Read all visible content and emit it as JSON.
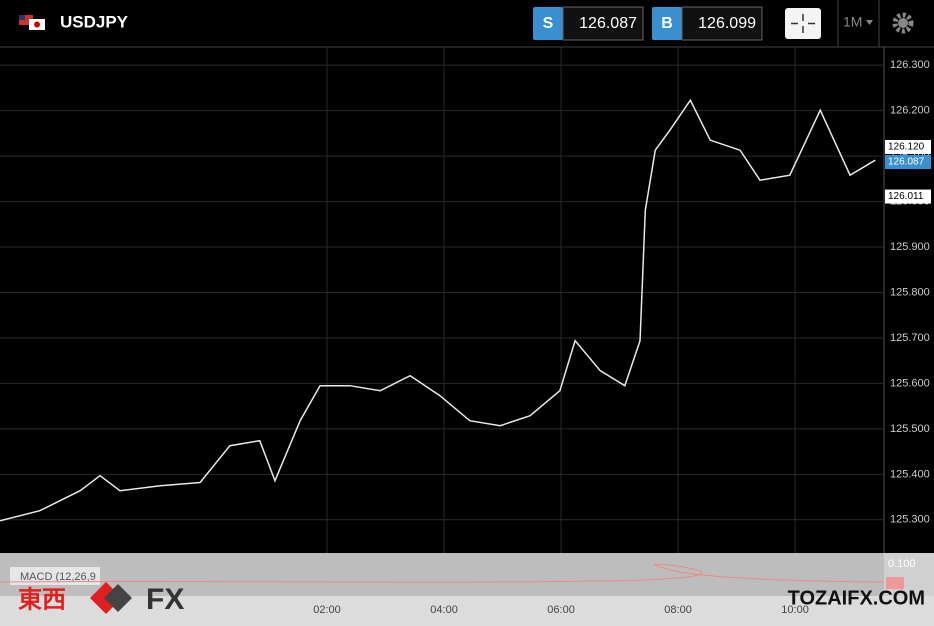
{
  "header": {
    "symbol": "USDJPY",
    "sell_label": "S",
    "sell_price": "126.087",
    "buy_label": "B",
    "buy_price": "126.099",
    "timeframe": "1M"
  },
  "chart_data": {
    "type": "line",
    "x": [
      -3.59,
      -2.91,
      -2.22,
      -1.88,
      -1.54,
      -0.85,
      -0.17,
      0.34,
      0.85,
      1.11,
      1.54,
      1.88,
      2.39,
      2.91,
      3.42,
      3.93,
      4.44,
      4.96,
      5.47,
      5.98,
      6.24,
      6.67,
      7.09,
      7.35,
      7.44,
      7.61,
      7.86,
      8.21,
      8.55,
      9.06,
      9.4,
      9.91,
      10.43,
      10.94,
      11.37
    ],
    "values": [
      125.298,
      125.32,
      125.364,
      125.397,
      125.364,
      125.375,
      125.382,
      125.463,
      125.474,
      125.386,
      125.518,
      125.595,
      125.595,
      125.584,
      125.617,
      125.573,
      125.518,
      125.507,
      125.529,
      125.584,
      125.694,
      125.628,
      125.595,
      125.694,
      125.981,
      126.113,
      126.157,
      126.223,
      126.135,
      126.113,
      126.047,
      126.058,
      126.201,
      126.058,
      126.091
    ],
    "color": "#e8e8e8",
    "xlim": [
      -3.59,
      11.52
    ],
    "ylim": [
      125.227,
      126.34
    ],
    "xticks": [
      {
        "value": 2,
        "label": "02:00"
      },
      {
        "value": 4,
        "label": "04:00"
      },
      {
        "value": 6,
        "label": "06:00"
      },
      {
        "value": 8,
        "label": "08:00"
      },
      {
        "value": 10,
        "label": "10:00"
      }
    ],
    "yticks": [
      {
        "value": 125.3,
        "label": "125.300"
      },
      {
        "value": 125.4,
        "label": "125.400"
      },
      {
        "value": 125.5,
        "label": "125.500"
      },
      {
        "value": 125.6,
        "label": "125.600"
      },
      {
        "value": 125.7,
        "label": "125.700"
      },
      {
        "value": 125.8,
        "label": "125.800"
      },
      {
        "value": 125.9,
        "label": "125.900"
      },
      {
        "value": 126,
        "label": "126.000"
      },
      {
        "value": 126.1,
        "label": "126.100"
      },
      {
        "value": 126.2,
        "label": "126.200"
      },
      {
        "value": 126.3,
        "label": "126.300"
      }
    ],
    "price_labels": [
      {
        "value": 126.12,
        "label": "126.120"
      },
      {
        "value": 126.087,
        "label": "126.087",
        "color": "#3a8fd0"
      },
      {
        "value": 126.011,
        "label": "126.011"
      }
    ],
    "grid": true
  },
  "macd": {
    "title": "MACD (12,26,9",
    "tick": "0.100"
  },
  "watermark": {
    "cjk": "東西",
    "latin": "FX",
    "site": "TOZAIFX.COM"
  }
}
